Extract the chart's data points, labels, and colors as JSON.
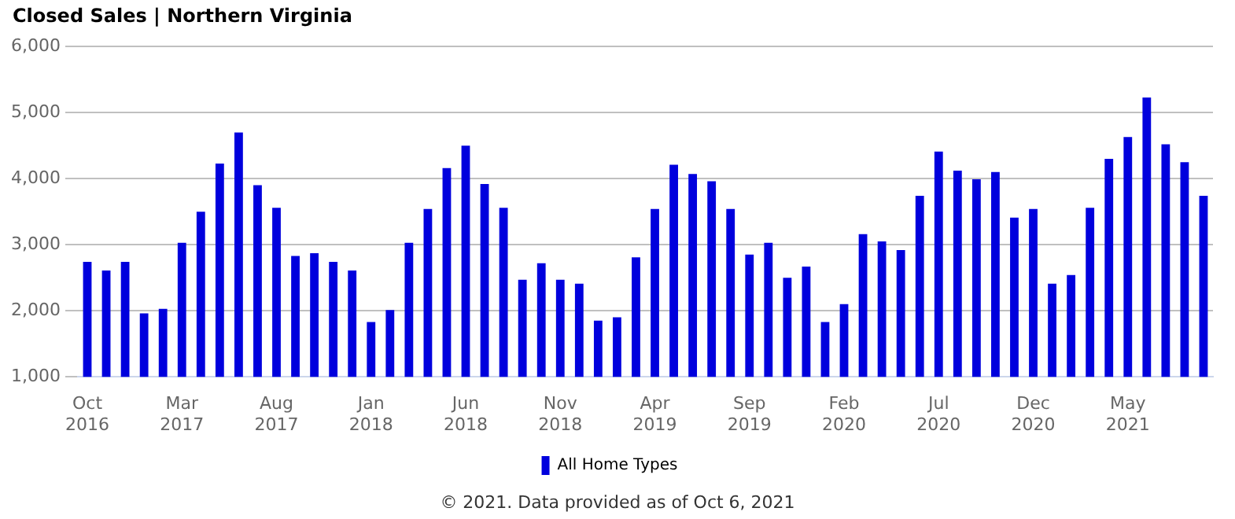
{
  "chart_data": {
    "type": "bar",
    "title": "Closed Sales | Northern Virginia",
    "categories": [
      "Oct 2016",
      null,
      null,
      null,
      null,
      "Mar 2017",
      null,
      null,
      null,
      null,
      "Aug 2017",
      null,
      null,
      null,
      null,
      "Jan 2018",
      null,
      null,
      null,
      null,
      "Jun 2018",
      null,
      null,
      null,
      null,
      "Nov 2018",
      null,
      null,
      null,
      null,
      "Apr 2019",
      null,
      null,
      null,
      null,
      "Sep 2019",
      null,
      null,
      null,
      null,
      "Feb 2020",
      null,
      null,
      null,
      null,
      "Jul 2020",
      null,
      null,
      null,
      null,
      "Dec 2020",
      null,
      null,
      null,
      null,
      "May 2021",
      null,
      null,
      null,
      null
    ],
    "series": [
      {
        "name": "All Home Types",
        "color": "#0000dd",
        "values": [
          2740,
          2610,
          2740,
          1960,
          2030,
          3030,
          3500,
          4230,
          4700,
          3900,
          3560,
          2830,
          2870,
          2740,
          2610,
          1830,
          2010,
          3030,
          3540,
          4160,
          4500,
          3920,
          3560,
          2470,
          2720,
          2470,
          2410,
          1850,
          1900,
          2810,
          3540,
          4210,
          4070,
          3960,
          3540,
          2850,
          3030,
          2500,
          2670,
          1830,
          2100,
          3160,
          3050,
          2920,
          3740,
          4410,
          4120,
          3990,
          4100,
          3410,
          3540,
          2410,
          2540,
          3560,
          4300,
          4630,
          5230,
          4520,
          4250,
          3740
        ]
      }
    ],
    "ylim": [
      1000,
      6000
    ],
    "yticks": [
      {
        "value": 1000,
        "label": "1,000"
      },
      {
        "value": 2000,
        "label": "2,000"
      },
      {
        "value": 3000,
        "label": "3,000"
      },
      {
        "value": 4000,
        "label": "4,000"
      },
      {
        "value": 5000,
        "label": "5,000"
      },
      {
        "value": 6000,
        "label": "6,000"
      }
    ],
    "grid": "y",
    "legend": "bottom",
    "annotations": [
      "© 2021. Data provided as of Oct 6, 2021"
    ]
  }
}
